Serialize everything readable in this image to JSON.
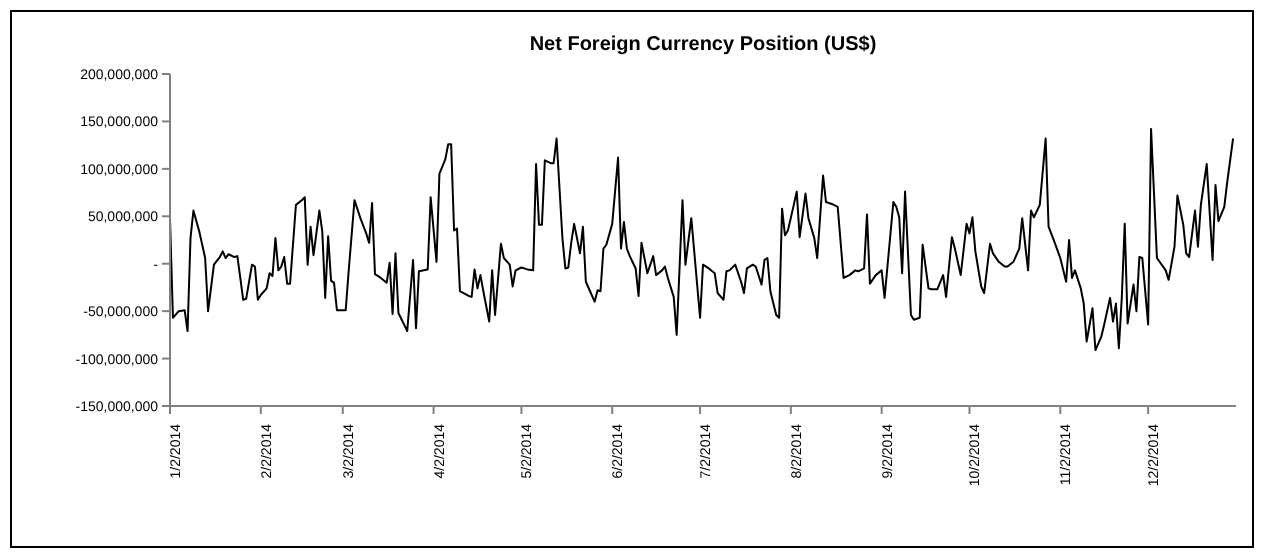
{
  "chart_data": {
    "type": "line",
    "title": "Net Foreign Currency Position (US$)",
    "color": "#000000",
    "xlim": [
      "2014-01-02",
      "2015-01-01"
    ],
    "xticks": [
      {
        "value": "2014-01-02",
        "label": "1/2/2014"
      },
      {
        "value": "2014-02-02",
        "label": "2/2/2014"
      },
      {
        "value": "2014-03-02",
        "label": "3/2/2014"
      },
      {
        "value": "2014-04-02",
        "label": "4/2/2014"
      },
      {
        "value": "2014-05-02",
        "label": "5/2/2014"
      },
      {
        "value": "2014-06-02",
        "label": "6/2/2014"
      },
      {
        "value": "2014-07-02",
        "label": "7/2/2014"
      },
      {
        "value": "2014-08-02",
        "label": "8/2/2014"
      },
      {
        "value": "2014-09-02",
        "label": "9/2/2014"
      },
      {
        "value": "2014-10-02",
        "label": "10/2/2014"
      },
      {
        "value": "2014-11-02",
        "label": "11/2/2014"
      },
      {
        "value": "2014-12-02",
        "label": "12/2/2014"
      }
    ],
    "ylim": [
      -150000000,
      200000000
    ],
    "yticks": [
      {
        "value": -150000000,
        "label": "-150,000,000"
      },
      {
        "value": -100000000,
        "label": "-100,000,000"
      },
      {
        "value": -50000000,
        "label": "-50,000,000"
      },
      {
        "value": 0,
        "label": "-"
      },
      {
        "value": 50000000,
        "label": "50,000,000"
      },
      {
        "value": 100000000,
        "label": "100,000,000"
      },
      {
        "value": 150000000,
        "label": "150,000,000"
      },
      {
        "value": 200000000,
        "label": "200,000,000"
      }
    ],
    "x": [
      "2014-01-02",
      "2014-01-03",
      "2014-01-05",
      "2014-01-07",
      "2014-01-08",
      "2014-01-09",
      "2014-01-10",
      "2014-01-12",
      "2014-01-14",
      "2014-01-15",
      "2014-01-17",
      "2014-01-19",
      "2014-01-20",
      "2014-01-21",
      "2014-01-22",
      "2014-01-24",
      "2014-01-25",
      "2014-01-26",
      "2014-01-27",
      "2014-01-28",
      "2014-01-30",
      "2014-01-31",
      "2014-02-01",
      "2014-02-02",
      "2014-02-04",
      "2014-02-05",
      "2014-02-06",
      "2014-02-07",
      "2014-02-08",
      "2014-02-09",
      "2014-02-10",
      "2014-02-11",
      "2014-02-12",
      "2014-02-14",
      "2014-02-16",
      "2014-02-17",
      "2014-02-18",
      "2014-02-19",
      "2014-02-20",
      "2014-02-22",
      "2014-02-23",
      "2014-02-24",
      "2014-02-25",
      "2014-02-26",
      "2014-02-27",
      "2014-02-28",
      "2014-03-03",
      "2014-03-04",
      "2014-03-06",
      "2014-03-08",
      "2014-03-10",
      "2014-03-11",
      "2014-03-12",
      "2014-03-13",
      "2014-03-15",
      "2014-03-17",
      "2014-03-18",
      "2014-03-19",
      "2014-03-20",
      "2014-03-21",
      "2014-03-24",
      "2014-03-26",
      "2014-03-27",
      "2014-03-28",
      "2014-03-31",
      "2014-04-01",
      "2014-04-03",
      "2014-04-04",
      "2014-04-06",
      "2014-04-07",
      "2014-04-08",
      "2014-04-09",
      "2014-04-10",
      "2014-04-11",
      "2014-04-14",
      "2014-04-15",
      "2014-04-16",
      "2014-04-17",
      "2014-04-18",
      "2014-04-19",
      "2014-04-21",
      "2014-04-22",
      "2014-04-23",
      "2014-04-25",
      "2014-04-26",
      "2014-04-28",
      "2014-04-29",
      "2014-04-30",
      "2014-05-02",
      "2014-05-04",
      "2014-05-06",
      "2014-05-07",
      "2014-05-08",
      "2014-05-09",
      "2014-05-10",
      "2014-05-12",
      "2014-05-13",
      "2014-05-14",
      "2014-05-16",
      "2014-05-17",
      "2014-05-18",
      "2014-05-19",
      "2014-05-20",
      "2014-05-22",
      "2014-05-23",
      "2014-05-24",
      "2014-05-26",
      "2014-05-27",
      "2014-05-28",
      "2014-05-29",
      "2014-05-30",
      "2014-05-31",
      "2014-06-02",
      "2014-06-04",
      "2014-06-05",
      "2014-06-06",
      "2014-06-07",
      "2014-06-08",
      "2014-06-10",
      "2014-06-11",
      "2014-06-12",
      "2014-06-14",
      "2014-06-16",
      "2014-06-17",
      "2014-06-19",
      "2014-06-20",
      "2014-06-21",
      "2014-06-23",
      "2014-06-24",
      "2014-06-26",
      "2014-06-27",
      "2014-06-29",
      "2014-07-02",
      "2014-07-03",
      "2014-07-05",
      "2014-07-07",
      "2014-07-08",
      "2014-07-10",
      "2014-07-11",
      "2014-07-12",
      "2014-07-14",
      "2014-07-16",
      "2014-07-17",
      "2014-07-18",
      "2014-07-20",
      "2014-07-21",
      "2014-07-23",
      "2014-07-24",
      "2014-07-25",
      "2014-07-26",
      "2014-07-28",
      "2014-07-29",
      "2014-07-30",
      "2014-07-31",
      "2014-08-01",
      "2014-08-03",
      "2014-08-04",
      "2014-08-05",
      "2014-08-07",
      "2014-08-08",
      "2014-08-10",
      "2014-08-11",
      "2014-08-13",
      "2014-08-14",
      "2014-08-16",
      "2014-08-18",
      "2014-08-20",
      "2014-08-22",
      "2014-08-24",
      "2014-08-25",
      "2014-08-27",
      "2014-08-28",
      "2014-08-29",
      "2014-08-31",
      "2014-09-02",
      "2014-09-03",
      "2014-09-06",
      "2014-09-07",
      "2014-09-08",
      "2014-09-09",
      "2014-09-10",
      "2014-09-12",
      "2014-09-13",
      "2014-09-15",
      "2014-09-16",
      "2014-09-18",
      "2014-09-19",
      "2014-09-21",
      "2014-09-23",
      "2014-09-24",
      "2014-09-26",
      "2014-09-27",
      "2014-09-29",
      "2014-10-01",
      "2014-10-02",
      "2014-10-03",
      "2014-10-04",
      "2014-10-06",
      "2014-10-07",
      "2014-10-09",
      "2014-10-10",
      "2014-10-12",
      "2014-10-14",
      "2014-10-15",
      "2014-10-17",
      "2014-10-19",
      "2014-10-20",
      "2014-10-22",
      "2014-10-23",
      "2014-10-24",
      "2014-10-26",
      "2014-10-28",
      "2014-10-29",
      "2014-10-31",
      "2014-11-02",
      "2014-11-04",
      "2014-11-05",
      "2014-11-06",
      "2014-11-07",
      "2014-11-09",
      "2014-11-10",
      "2014-11-11",
      "2014-11-13",
      "2014-11-14",
      "2014-11-16",
      "2014-11-17",
      "2014-11-19",
      "2014-11-20",
      "2014-11-21",
      "2014-11-22",
      "2014-11-23",
      "2014-11-24",
      "2014-11-25",
      "2014-11-27",
      "2014-11-28",
      "2014-11-29",
      "2014-11-30",
      "2014-12-02",
      "2014-12-03",
      "2014-12-05",
      "2014-12-08",
      "2014-12-09",
      "2014-12-11",
      "2014-12-12",
      "2014-12-14",
      "2014-12-15",
      "2014-12-16",
      "2014-12-18",
      "2014-12-19",
      "2014-12-20",
      "2014-12-22",
      "2014-12-24",
      "2014-12-25",
      "2014-12-26",
      "2014-12-28",
      "2014-12-29",
      "2014-12-31"
    ],
    "values": [
      48000000,
      -57000000,
      -50000000,
      -49000000,
      -71000000,
      27000000,
      56000000,
      34000000,
      6000000,
      -50000000,
      -1000000,
      7000000,
      13000000,
      6000000,
      10000000,
      7000000,
      8000000,
      -15000000,
      -38000000,
      -37000000,
      -1000000,
      -3000000,
      -38000000,
      -33000000,
      -26000000,
      -10000000,
      -13000000,
      27000000,
      -7000000,
      -3000000,
      7000000,
      -21000000,
      -21000000,
      62000000,
      67000000,
      70000000,
      -1000000,
      39000000,
      9000000,
      56000000,
      34000000,
      -36000000,
      29000000,
      -18000000,
      -20000000,
      -49000000,
      -49000000,
      -8000000,
      67000000,
      48000000,
      32000000,
      22000000,
      64000000,
      -11000000,
      -15000000,
      -20000000,
      1000000,
      -53000000,
      11000000,
      -52000000,
      -71000000,
      4000000,
      -68000000,
      -8000000,
      -6000000,
      70000000,
      2000000,
      95000000,
      110000000,
      126000000,
      126000000,
      35000000,
      37000000,
      -29000000,
      -34000000,
      -35000000,
      -6000000,
      -26000000,
      -12000000,
      -29000000,
      -61000000,
      -7000000,
      -54000000,
      21000000,
      6000000,
      -1000000,
      -24000000,
      -7000000,
      -4000000,
      -6000000,
      -7000000,
      105000000,
      41000000,
      41000000,
      109000000,
      106000000,
      106000000,
      132000000,
      27000000,
      -5000000,
      -4000000,
      22000000,
      42000000,
      11000000,
      39000000,
      -19000000,
      -33000000,
      -40000000,
      -28000000,
      -29000000,
      16000000,
      20000000,
      42000000,
      112000000,
      16000000,
      44000000,
      16000000,
      8000000,
      -5000000,
      -34000000,
      22000000,
      -10000000,
      8000000,
      -12000000,
      -7000000,
      -3000000,
      -15000000,
      -35000000,
      -75000000,
      67000000,
      -1000000,
      48000000,
      -57000000,
      -1000000,
      -5000000,
      -10000000,
      -31000000,
      -38000000,
      -8000000,
      -7000000,
      -1000000,
      -19000000,
      -31000000,
      -5000000,
      -1000000,
      -3000000,
      -22000000,
      4000000,
      6000000,
      -29000000,
      -54000000,
      -57000000,
      58000000,
      30000000,
      35000000,
      62000000,
      76000000,
      28000000,
      74000000,
      48000000,
      27000000,
      6000000,
      93000000,
      65000000,
      63000000,
      60000000,
      -15000000,
      -12000000,
      -7000000,
      -8000000,
      -5000000,
      52000000,
      -21000000,
      -12000000,
      -7000000,
      -36000000,
      65000000,
      60000000,
      49000000,
      -10000000,
      76000000,
      -54000000,
      -59000000,
      -57000000,
      20000000,
      -26000000,
      -27000000,
      -27000000,
      -12000000,
      -35000000,
      28000000,
      16000000,
      -12000000,
      42000000,
      32000000,
      49000000,
      13000000,
      -24000000,
      -31000000,
      21000000,
      11000000,
      2000000,
      -3000000,
      -3000000,
      2000000,
      16000000,
      48000000,
      -7000000,
      56000000,
      49000000,
      62000000,
      132000000,
      39000000,
      23000000,
      6000000,
      -19000000,
      25000000,
      -15000000,
      -7000000,
      -26000000,
      -42000000,
      -82000000,
      -47000000,
      -91000000,
      -77000000,
      -64000000,
      -36000000,
      -61000000,
      -42000000,
      -89000000,
      -36000000,
      42000000,
      -63000000,
      -22000000,
      -50000000,
      7000000,
      6000000,
      -64000000,
      142000000,
      6000000,
      -7000000,
      -17000000,
      18000000,
      72000000,
      41000000,
      11000000,
      7000000,
      56000000,
      18000000,
      62000000,
      105000000,
      4000000,
      83000000,
      45000000,
      60000000,
      86000000,
      132000000
    ]
  }
}
